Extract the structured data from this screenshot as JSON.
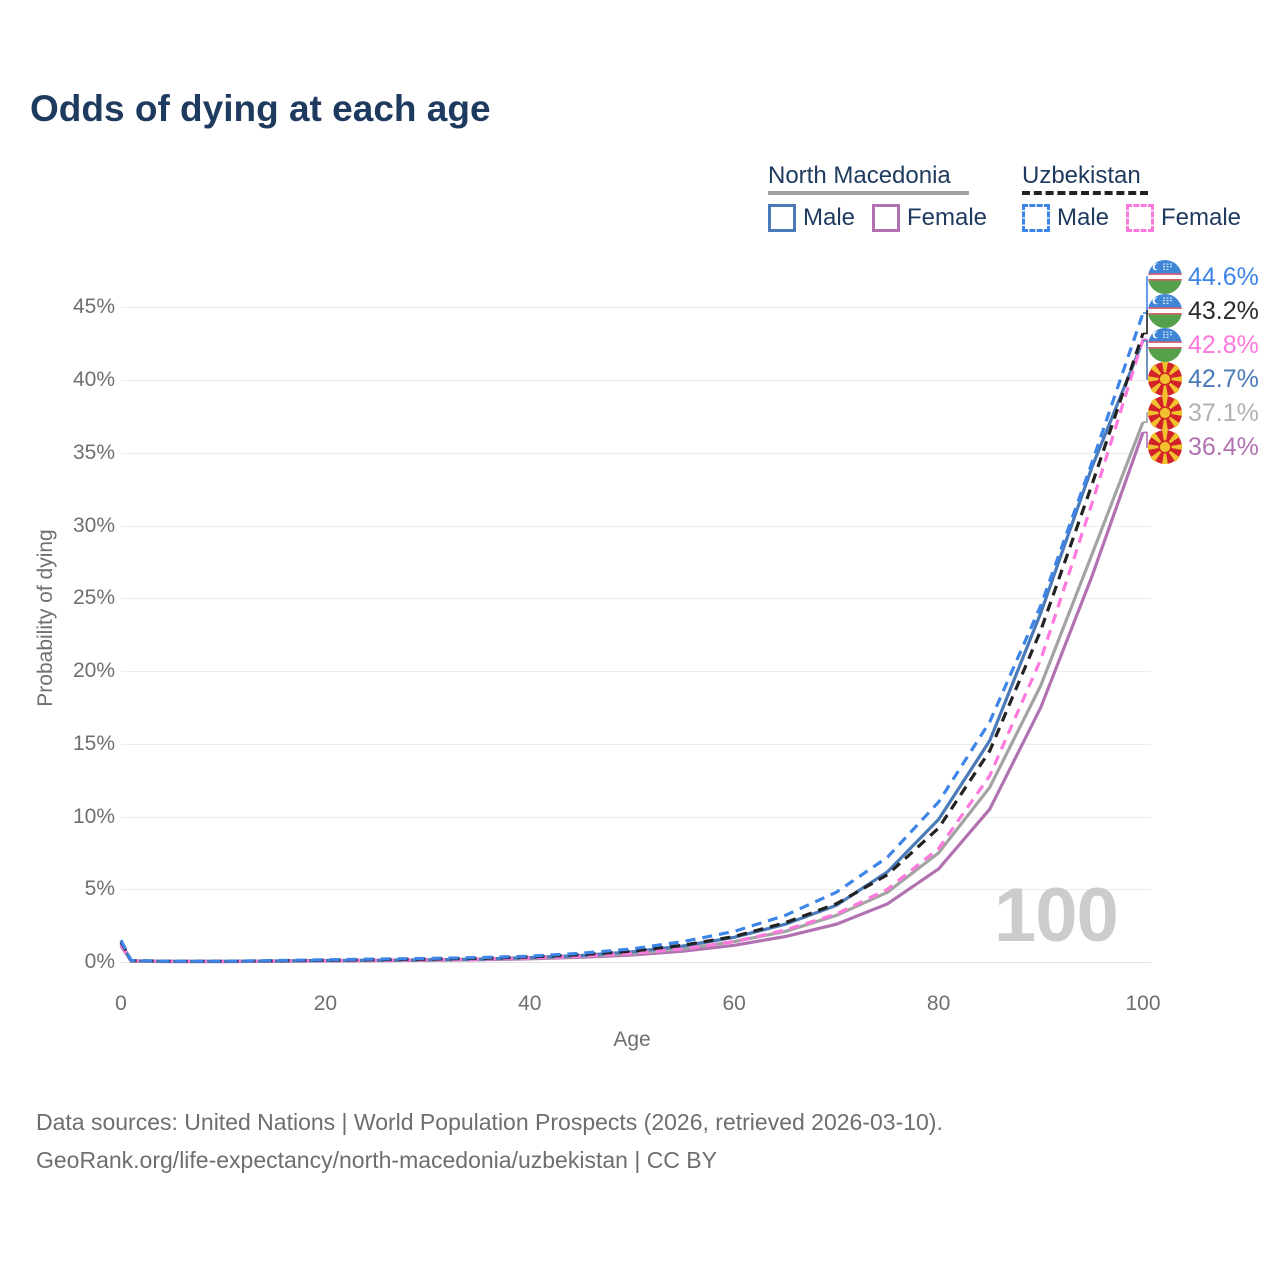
{
  "header": {
    "title": "Odds of dying at each age"
  },
  "legend": {
    "groups": [
      {
        "country": "North Macedonia",
        "underline_style": "solid",
        "underline_color": "#a3a3a3",
        "items": [
          {
            "label": "Male",
            "color": "#4a7ab8",
            "dash": false
          },
          {
            "label": "Female",
            "color": "#b272b2",
            "dash": false
          }
        ]
      },
      {
        "country": "Uzbekistan",
        "underline_style": "dashed",
        "underline_color": "#222222",
        "items": [
          {
            "label": "Male",
            "color": "#3d85e8",
            "dash": true
          },
          {
            "label": "Female",
            "color": "#ff78dd",
            "dash": true
          }
        ]
      }
    ]
  },
  "watermark": "100",
  "footer": {
    "line1": "Data sources: United Nations | World Population Prospects (2026, retrieved 2026-03-10).",
    "line2": "GeoRank.org/life-expectancy/north-macedonia/uzbekistan | CC BY"
  },
  "chart_data": {
    "type": "line",
    "title": "Odds of dying at each age",
    "xlabel": "Age",
    "ylabel": "Probability of dying",
    "xlim": [
      0,
      100
    ],
    "ylim_percent": [
      0,
      47.5
    ],
    "grid": "horizontal",
    "x_tick_values": [
      0,
      20,
      40,
      60,
      80,
      100
    ],
    "x_tick_labels": [
      "0",
      "20",
      "40",
      "60",
      "80",
      "100"
    ],
    "y_tick_values": [
      0,
      5,
      10,
      15,
      20,
      25,
      30,
      35,
      40,
      45
    ],
    "y_tick_labels": [
      "0%",
      "5%",
      "10%",
      "15%",
      "20%",
      "25%",
      "30%",
      "35%",
      "40%",
      "45%"
    ],
    "ages": [
      0,
      1,
      5,
      10,
      15,
      20,
      25,
      30,
      35,
      40,
      45,
      50,
      55,
      60,
      65,
      70,
      75,
      80,
      85,
      90,
      95,
      100
    ],
    "series": [
      {
        "id": "mk-female",
        "name": "North Macedonia Female",
        "color": "#b272b2",
        "label_color": "#b272b2",
        "dash": false,
        "flag": "mk",
        "end_label": "36.4%",
        "end_value": 36.4,
        "values": [
          1.1,
          0.06,
          0.03,
          0.03,
          0.05,
          0.07,
          0.09,
          0.12,
          0.15,
          0.22,
          0.32,
          0.48,
          0.75,
          1.15,
          1.75,
          2.6,
          4.0,
          6.4,
          10.5,
          17.5,
          26.5,
          36.4
        ]
      },
      {
        "id": "mk-all",
        "name": "North Macedonia",
        "color": "#a3a3a3",
        "label_color": "#b2b2b2",
        "dash": false,
        "flag": "mk",
        "end_label": "37.1%",
        "end_value": 37.1,
        "values": [
          1.2,
          0.07,
          0.04,
          0.04,
          0.06,
          0.09,
          0.11,
          0.14,
          0.18,
          0.26,
          0.38,
          0.58,
          0.9,
          1.4,
          2.1,
          3.2,
          4.8,
          7.5,
          12.0,
          19.0,
          28.0,
          37.1
        ]
      },
      {
        "id": "mk-male",
        "name": "North Macedonia Male",
        "color": "#4a7ab8",
        "label_color": "#4a7ab8",
        "dash": false,
        "flag": "mk",
        "end_label": "42.7%",
        "end_value": 42.7,
        "values": [
          1.3,
          0.08,
          0.04,
          0.04,
          0.07,
          0.1,
          0.12,
          0.15,
          0.2,
          0.3,
          0.45,
          0.7,
          1.1,
          1.7,
          2.6,
          3.9,
          6.2,
          9.8,
          15.2,
          24.0,
          34.0,
          42.7
        ]
      },
      {
        "id": "uz-female",
        "name": "Uzbekistan Female",
        "color": "#ff78dd",
        "label_color": "#ff78dd",
        "dash": true,
        "flag": "uz",
        "end_label": "42.8%",
        "end_value": 42.8,
        "values": [
          1.2,
          0.08,
          0.04,
          0.04,
          0.06,
          0.09,
          0.12,
          0.15,
          0.2,
          0.28,
          0.4,
          0.6,
          0.9,
          1.4,
          2.2,
          3.3,
          5.0,
          7.8,
          12.8,
          20.8,
          31.5,
          42.8
        ]
      },
      {
        "id": "uz-all",
        "name": "Uzbekistan",
        "color": "#222222",
        "label_color": "#2a2a2a",
        "dash": true,
        "flag": "uz",
        "end_label": "43.2%",
        "end_value": 43.2,
        "values": [
          1.4,
          0.09,
          0.05,
          0.05,
          0.08,
          0.12,
          0.16,
          0.2,
          0.25,
          0.35,
          0.5,
          0.75,
          1.15,
          1.75,
          2.7,
          4.0,
          6.0,
          9.2,
          14.5,
          22.8,
          32.8,
          43.2
        ]
      },
      {
        "id": "uz-male",
        "name": "Uzbekistan Male",
        "color": "#3d85e8",
        "label_color": "#3d85e8",
        "dash": true,
        "flag": "uz",
        "end_label": "44.6%",
        "end_value": 44.6,
        "values": [
          1.5,
          0.1,
          0.05,
          0.05,
          0.1,
          0.15,
          0.2,
          0.25,
          0.3,
          0.4,
          0.6,
          0.9,
          1.4,
          2.1,
          3.2,
          4.8,
          7.2,
          11.0,
          16.5,
          24.5,
          34.3,
          44.6
        ]
      }
    ],
    "end_label_order": [
      "uz-male",
      "uz-all",
      "uz-female",
      "mk-male",
      "mk-all",
      "mk-female"
    ]
  }
}
